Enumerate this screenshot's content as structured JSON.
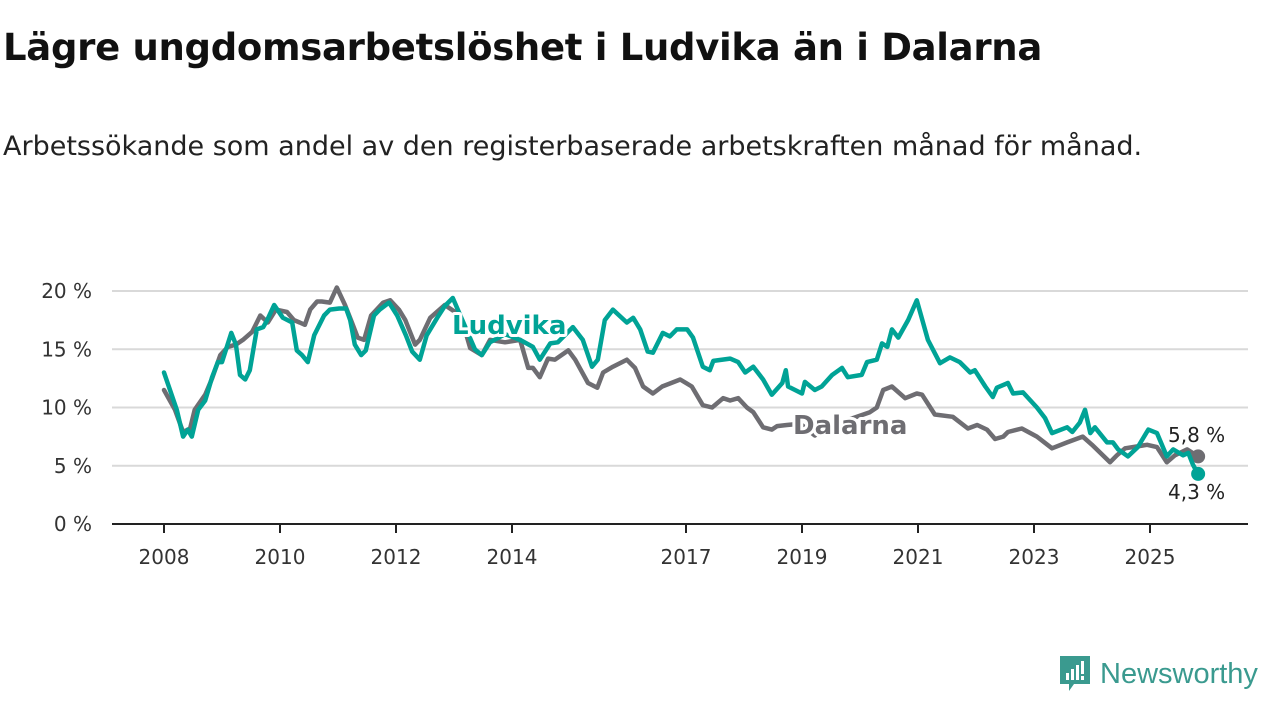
{
  "chart_data": {
    "type": "line",
    "title": "Lägre ungdomsarbetslöshet i Ludvika än i Dalarna",
    "subtitle": "Arbetssökande som andel av den registerbaserade arbetskraften månad för månad.",
    "xlabel": "",
    "ylabel": "",
    "xlim": [
      2007.2,
      2026.8
    ],
    "ylim": [
      0,
      20
    ],
    "grid": true,
    "y_ticks": [
      0,
      5,
      10,
      15,
      20
    ],
    "y_tick_labels": [
      "0 %",
      "5 %",
      "10 %",
      "15 %",
      "20 %"
    ],
    "x_ticks": [
      2008,
      2010,
      2012,
      2014,
      2017,
      2019,
      2021,
      2023,
      2025
    ],
    "x_tick_labels": [
      "2008",
      "2010",
      "2012",
      "2014",
      "2017",
      "2019",
      "2021",
      "2023",
      "2025"
    ],
    "series": [
      {
        "name": "Dalarna",
        "color": "#6e6d72",
        "end_label": "5,8 %",
        "x": [
          2008.0,
          2008.19,
          2008.33,
          2008.45,
          2008.53,
          2008.71,
          2008.83,
          2008.97,
          2009.1,
          2009.24,
          2009.36,
          2009.52,
          2009.66,
          2009.79,
          2009.93,
          2010.12,
          2010.24,
          2010.34,
          2010.43,
          2010.52,
          2010.64,
          2010.72,
          2010.86,
          2010.98,
          2011.12,
          2011.24,
          2011.34,
          2011.45,
          2011.57,
          2011.78,
          2011.9,
          2012.05,
          2012.16,
          2012.33,
          2012.41,
          2012.59,
          2012.84,
          2013.02,
          2013.14,
          2013.28,
          2013.48,
          2013.62,
          2013.88,
          2014.14,
          2014.28,
          2014.36,
          2014.48,
          2014.62,
          2014.74,
          2014.97,
          2015.09,
          2015.31,
          2015.47,
          2015.57,
          2015.74,
          2015.98,
          2016.12,
          2016.26,
          2016.43,
          2016.59,
          2016.9,
          2017.1,
          2017.29,
          2017.45,
          2017.64,
          2017.76,
          2017.9,
          2018.05,
          2018.16,
          2018.33,
          2018.48,
          2018.57,
          2018.74,
          2018.97,
          2019.22,
          2019.48,
          2019.83,
          2020.17,
          2020.29,
          2020.4,
          2020.55,
          2020.78,
          2020.98,
          2021.07,
          2021.29,
          2021.6,
          2021.86,
          2022.02,
          2022.19,
          2022.33,
          2022.47,
          2022.55,
          2022.79,
          2023.05,
          2023.31,
          2023.57,
          2023.84,
          2024.0,
          2024.31,
          2024.43,
          2024.57,
          2024.95,
          2025.12,
          2025.29,
          2025.43,
          2025.64,
          2025.83
        ],
        "y": [
          11.5,
          9.8,
          7.9,
          8.2,
          9.8,
          11.1,
          12.5,
          14.5,
          15.2,
          15.4,
          15.8,
          16.5,
          17.9,
          17.3,
          18.4,
          18.2,
          17.5,
          17.3,
          17.1,
          18.4,
          19.1,
          19.1,
          19.0,
          20.3,
          18.8,
          17.3,
          16.0,
          15.8,
          17.9,
          19.0,
          19.2,
          18.4,
          17.5,
          15.4,
          15.8,
          17.7,
          18.8,
          18.2,
          17.5,
          15.1,
          14.5,
          15.8,
          15.6,
          15.8,
          13.4,
          13.4,
          12.6,
          14.2,
          14.1,
          14.9,
          14.1,
          12.1,
          11.7,
          13.0,
          13.5,
          14.1,
          13.4,
          11.8,
          11.2,
          11.8,
          12.4,
          11.8,
          10.2,
          10.0,
          10.8,
          10.6,
          10.8,
          10.0,
          9.6,
          8.3,
          8.1,
          8.4,
          8.5,
          8.6,
          7.6,
          8.5,
          9.0,
          9.6,
          10.0,
          11.5,
          11.8,
          10.8,
          11.2,
          11.1,
          9.4,
          9.2,
          8.2,
          8.5,
          8.1,
          7.3,
          7.5,
          7.9,
          8.2,
          7.5,
          6.5,
          7.0,
          7.5,
          6.8,
          5.3,
          5.9,
          6.5,
          6.8,
          6.6,
          5.3,
          5.9,
          6.4,
          5.8
        ]
      },
      {
        "name": "Ludvika",
        "color": "#00a396",
        "end_label": "4,3 %",
        "x": [
          2008.0,
          2008.22,
          2008.33,
          2008.41,
          2008.48,
          2008.59,
          2008.71,
          2008.83,
          2008.93,
          2009.0,
          2009.16,
          2009.24,
          2009.31,
          2009.4,
          2009.48,
          2009.6,
          2009.71,
          2009.78,
          2009.9,
          2010.05,
          2010.21,
          2010.29,
          2010.38,
          2010.48,
          2010.59,
          2010.76,
          2010.86,
          2011.02,
          2011.14,
          2011.21,
          2011.29,
          2011.4,
          2011.48,
          2011.62,
          2011.72,
          2011.88,
          2012.02,
          2012.17,
          2012.28,
          2012.41,
          2012.53,
          2012.71,
          2012.84,
          2012.98,
          2013.36,
          2013.48,
          2013.62,
          2013.88,
          2014.14,
          2014.36,
          2014.48,
          2014.66,
          2014.79,
          2015.05,
          2015.22,
          2015.38,
          2015.48,
          2015.6,
          2015.74,
          2015.98,
          2016.09,
          2016.21,
          2016.34,
          2016.43,
          2016.6,
          2016.72,
          2016.84,
          2017.02,
          2017.12,
          2017.29,
          2017.41,
          2017.47,
          2017.76,
          2017.9,
          2018.02,
          2018.16,
          2018.33,
          2018.48,
          2018.66,
          2018.72,
          2018.76,
          2019.0,
          2019.05,
          2019.22,
          2019.34,
          2019.52,
          2019.69,
          2019.79,
          2020.03,
          2020.12,
          2020.29,
          2020.38,
          2020.47,
          2020.55,
          2020.66,
          2020.83,
          2020.98,
          2021.17,
          2021.38,
          2021.55,
          2021.72,
          2021.9,
          2021.98,
          2022.16,
          2022.29,
          2022.36,
          2022.55,
          2022.64,
          2022.81,
          2023.05,
          2023.19,
          2023.31,
          2023.57,
          2023.66,
          2023.79,
          2023.88,
          2023.97,
          2024.05,
          2024.26,
          2024.36,
          2024.45,
          2024.62,
          2024.79,
          2024.97,
          2025.12,
          2025.29,
          2025.4,
          2025.57,
          2025.66,
          2025.74,
          2025.83
        ],
        "y": [
          13.0,
          9.8,
          7.5,
          8.1,
          7.5,
          9.8,
          10.6,
          12.6,
          13.9,
          13.9,
          16.4,
          15.4,
          12.8,
          12.4,
          13.2,
          16.7,
          16.9,
          17.5,
          18.8,
          17.7,
          17.3,
          14.9,
          14.5,
          13.9,
          16.2,
          17.9,
          18.4,
          18.5,
          18.5,
          17.5,
          15.4,
          14.5,
          14.9,
          17.9,
          18.4,
          19.0,
          17.9,
          16.2,
          14.8,
          14.1,
          16.2,
          17.7,
          18.7,
          19.4,
          15.0,
          14.5,
          15.6,
          16.3,
          15.8,
          15.2,
          14.1,
          15.5,
          15.6,
          16.9,
          15.8,
          13.5,
          14.1,
          17.5,
          18.4,
          17.3,
          17.7,
          16.7,
          14.8,
          14.7,
          16.4,
          16.1,
          16.7,
          16.7,
          16.0,
          13.5,
          13.2,
          14.0,
          14.2,
          13.9,
          13.0,
          13.5,
          12.4,
          11.1,
          12.1,
          13.2,
          11.8,
          11.2,
          12.2,
          11.5,
          11.8,
          12.8,
          13.4,
          12.6,
          12.8,
          13.9,
          14.1,
          15.5,
          15.2,
          16.7,
          16.0,
          17.5,
          19.2,
          15.8,
          13.8,
          14.3,
          13.9,
          13.0,
          13.2,
          11.8,
          10.9,
          11.7,
          12.1,
          11.2,
          11.3,
          10.0,
          9.1,
          7.8,
          8.3,
          7.9,
          8.7,
          9.8,
          7.8,
          8.3,
          7.0,
          7.0,
          6.4,
          5.8,
          6.6,
          8.1,
          7.8,
          5.8,
          6.4,
          5.9,
          6.1,
          5.1,
          4.3
        ]
      }
    ]
  },
  "logo": {
    "text": "Newsworthy",
    "color": "#3a9a8f"
  }
}
